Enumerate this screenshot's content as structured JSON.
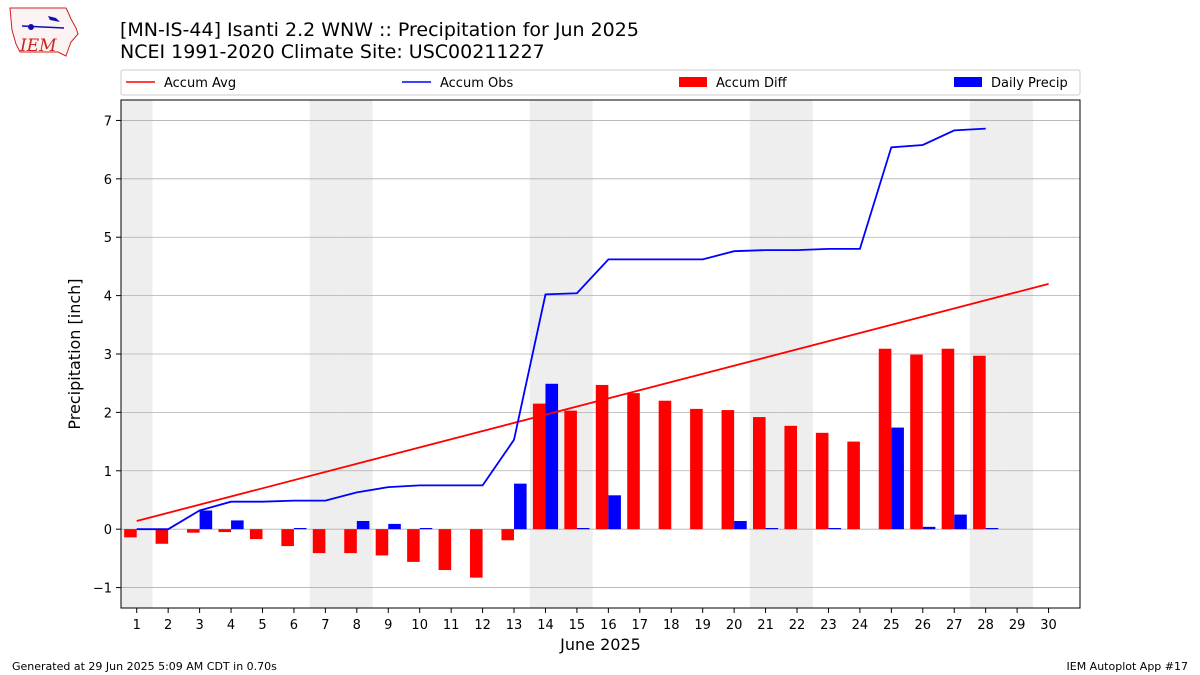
{
  "header": {
    "title_line1": "[MN-IS-44] Isanti 2.2 WNW :: Precipitation for Jun 2025",
    "title_line2": "NCEI 1991-2020 Climate Site: USC00211227",
    "logo_text": "IEM"
  },
  "footer": {
    "generated": "Generated at 29 Jun 2025 5:09 AM CDT in 0.70s",
    "app": "IEM Autoplot App #17"
  },
  "colors": {
    "avg": "#ff0000",
    "obs": "#0000ff",
    "diff": "#ff0000",
    "daily": "#0000ff",
    "weekend_band": "#eeeeee",
    "grid": "#b0b0b0"
  },
  "chart_data": {
    "type": "bar",
    "xlabel": "June 2025",
    "ylabel": "Precipitation [inch]",
    "xlim": [
      0.5,
      31
    ],
    "ylim": [
      -1.35,
      7.35
    ],
    "yticks": [
      -1,
      0,
      1,
      2,
      3,
      4,
      5,
      6,
      7
    ],
    "days": [
      1,
      2,
      3,
      4,
      5,
      6,
      7,
      8,
      9,
      10,
      11,
      12,
      13,
      14,
      15,
      16,
      17,
      18,
      19,
      20,
      21,
      22,
      23,
      24,
      25,
      26,
      27,
      28,
      29,
      30
    ],
    "shaded_days": [
      1,
      7,
      8,
      14,
      15,
      21,
      22,
      28,
      29
    ],
    "legend_placement": "top, above plot",
    "grid": "horizontal",
    "series": [
      {
        "name": "Accum Avg",
        "type": "line",
        "x": [
          1,
          30
        ],
        "values": [
          0.14,
          4.2
        ]
      },
      {
        "name": "Accum Obs",
        "type": "line",
        "x": [
          1,
          2,
          3,
          4,
          5,
          6,
          7,
          8,
          9,
          10,
          11,
          12,
          13,
          14,
          15,
          16,
          17,
          18,
          19,
          20,
          21,
          22,
          23,
          24,
          25,
          26,
          27,
          28
        ],
        "values": [
          0.0,
          0.0,
          0.32,
          0.47,
          0.47,
          0.49,
          0.49,
          0.63,
          0.72,
          0.75,
          0.75,
          0.75,
          1.53,
          4.02,
          4.04,
          4.62,
          4.62,
          4.62,
          4.62,
          4.76,
          4.78,
          4.78,
          4.8,
          4.8,
          6.54,
          6.58,
          6.83,
          6.86
        ]
      },
      {
        "name": "Accum Diff",
        "type": "bar",
        "x": [
          1,
          2,
          3,
          4,
          5,
          6,
          7,
          8,
          9,
          10,
          11,
          12,
          13,
          14,
          15,
          16,
          17,
          18,
          19,
          20,
          21,
          22,
          23,
          24,
          25,
          26,
          27,
          28
        ],
        "values": [
          -0.14,
          -0.25,
          -0.06,
          -0.05,
          -0.17,
          -0.29,
          -0.41,
          -0.41,
          -0.45,
          -0.56,
          -0.7,
          -0.83,
          -0.19,
          2.15,
          2.03,
          2.47,
          2.33,
          2.2,
          2.06,
          2.04,
          1.92,
          1.77,
          1.65,
          1.5,
          3.09,
          2.99,
          3.09,
          2.97
        ]
      },
      {
        "name": "Daily Precip",
        "type": "bar",
        "x": [
          1,
          2,
          3,
          4,
          5,
          6,
          7,
          8,
          9,
          10,
          11,
          12,
          13,
          14,
          15,
          16,
          17,
          18,
          19,
          20,
          21,
          22,
          23,
          24,
          25,
          26,
          27,
          28
        ],
        "values": [
          0.0,
          0.0,
          0.32,
          0.15,
          0.0,
          0.02,
          0.0,
          0.14,
          0.09,
          0.02,
          0.0,
          0.0,
          0.78,
          2.49,
          0.02,
          0.58,
          0.0,
          0.0,
          0.0,
          0.14,
          0.02,
          0.0,
          0.02,
          0.0,
          1.74,
          0.04,
          0.25,
          0.02
        ]
      }
    ]
  }
}
